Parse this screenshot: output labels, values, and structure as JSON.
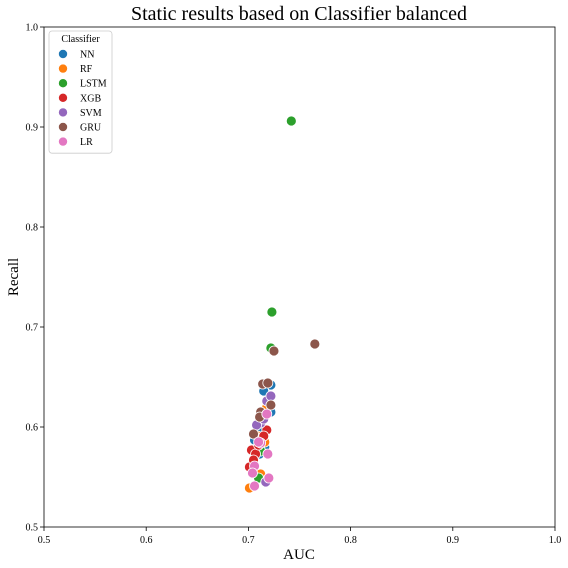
{
  "chart_data": {
    "type": "scatter",
    "title": "Static results based on Classifier balanced",
    "xlabel": "AUC",
    "ylabel": "Recall",
    "xlim": [
      0.5,
      1.0
    ],
    "ylim": [
      0.5,
      1.0
    ],
    "xticks": [
      "0.5",
      "0.6",
      "0.7",
      "0.8",
      "0.9",
      "1.0"
    ],
    "yticks": [
      "0.5",
      "0.6",
      "0.7",
      "0.8",
      "0.9",
      "1.0"
    ],
    "grid": false,
    "legend": {
      "title": "Classifier",
      "placement": "top-left"
    },
    "series": [
      {
        "name": "NN",
        "color": "#1f77b4",
        "points": [
          [
            0.722,
            0.642
          ],
          [
            0.715,
            0.636
          ],
          [
            0.722,
            0.615
          ],
          [
            0.712,
            0.6
          ],
          [
            0.706,
            0.587
          ],
          [
            0.716,
            0.58
          ],
          [
            0.711,
            0.573
          ]
        ]
      },
      {
        "name": "RF",
        "color": "#ff7f0e",
        "points": [
          [
            0.701,
            0.539
          ],
          [
            0.712,
            0.553
          ],
          [
            0.716,
            0.585
          ],
          [
            0.709,
            0.591
          ],
          [
            0.718,
            0.62
          ],
          [
            0.714,
            0.612
          ]
        ]
      },
      {
        "name": "LSTM",
        "color": "#2ca02c",
        "points": [
          [
            0.742,
            0.906
          ],
          [
            0.723,
            0.715
          ],
          [
            0.722,
            0.679
          ],
          [
            0.71,
            0.549
          ],
          [
            0.712,
            0.576
          ]
        ]
      },
      {
        "name": "XGB",
        "color": "#d62728",
        "points": [
          [
            0.703,
            0.577
          ],
          [
            0.718,
            0.597
          ],
          [
            0.715,
            0.591
          ],
          [
            0.701,
            0.56
          ],
          [
            0.707,
            0.573
          ],
          [
            0.705,
            0.567
          ],
          [
            0.71,
            0.582
          ]
        ]
      },
      {
        "name": "SVM",
        "color": "#9467bd",
        "points": [
          [
            0.718,
            0.626
          ],
          [
            0.722,
            0.631
          ],
          [
            0.712,
            0.604
          ],
          [
            0.708,
            0.602
          ],
          [
            0.717,
            0.545
          ],
          [
            0.715,
            0.608
          ]
        ]
      },
      {
        "name": "GRU",
        "color": "#8c564b",
        "points": [
          [
            0.765,
            0.683
          ],
          [
            0.725,
            0.676
          ],
          [
            0.714,
            0.643
          ],
          [
            0.719,
            0.644
          ],
          [
            0.722,
            0.622
          ],
          [
            0.712,
            0.615
          ],
          [
            0.711,
            0.61
          ],
          [
            0.705,
            0.593
          ]
        ]
      },
      {
        "name": "LR",
        "color": "#e377c2",
        "points": [
          [
            0.718,
            0.613
          ],
          [
            0.712,
            0.584
          ],
          [
            0.719,
            0.573
          ],
          [
            0.706,
            0.561
          ],
          [
            0.704,
            0.554
          ],
          [
            0.72,
            0.549
          ],
          [
            0.706,
            0.541
          ],
          [
            0.71,
            0.585
          ]
        ]
      }
    ]
  }
}
